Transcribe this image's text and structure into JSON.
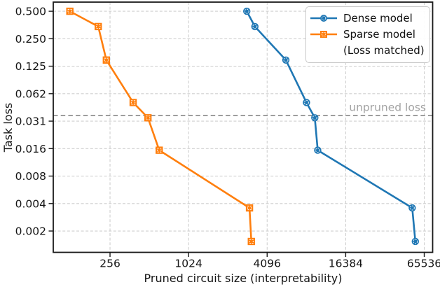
{
  "chart_data": {
    "type": "line",
    "title": "",
    "xlabel": "Pruned circuit size (interpretability)",
    "ylabel": "Task loss",
    "xscale": "log2",
    "yscale": "log2",
    "xlim": [
      94,
      76000
    ],
    "ylim": [
      0.00114,
      0.63
    ],
    "grid": true,
    "xticks": {
      "values": [
        256,
        1024,
        4096,
        16384,
        65536
      ],
      "labels": [
        "256",
        "1024",
        "4096",
        "16384",
        "65536"
      ]
    },
    "yticks": {
      "values": [
        0.5,
        0.25,
        0.125,
        0.0625,
        0.03125,
        0.015625,
        0.0078125,
        0.00390625,
        0.001953125
      ],
      "labels": [
        "0.500",
        "0.250",
        "0.125",
        "0.062",
        "0.031",
        "0.016",
        "0.008",
        "0.004",
        "0.002"
      ]
    },
    "legend": {
      "position": "upper-right",
      "entries": [
        {
          "label_lines": [
            "Dense model"
          ]
        },
        {
          "label_lines": [
            "Sparse model",
            "(Loss matched)"
          ]
        }
      ]
    },
    "annotation": {
      "label": "unpruned loss",
      "y": 0.036,
      "line_color": "#7d7d7d",
      "text_color": "#a3a3a3"
    },
    "series": [
      {
        "name": "Dense model",
        "color": "#1f77b4",
        "marker": "circle",
        "points": [
          [
            2860,
            0.5
          ],
          [
            3300,
            0.34
          ],
          [
            5700,
            0.146
          ],
          [
            8200,
            0.05
          ],
          [
            9500,
            0.034
          ],
          [
            10000,
            0.015
          ],
          [
            53000,
            0.0035
          ],
          [
            56000,
            0.0015
          ]
        ]
      },
      {
        "name": "Sparse model (Loss matched)",
        "color": "#ff7f0e",
        "marker": "square",
        "points": [
          [
            126,
            0.5
          ],
          [
            208,
            0.34
          ],
          [
            240,
            0.146
          ],
          [
            385,
            0.05
          ],
          [
            500,
            0.034
          ],
          [
            610,
            0.015
          ],
          [
            3000,
            0.0035
          ],
          [
            3100,
            0.0015
          ]
        ]
      }
    ]
  }
}
